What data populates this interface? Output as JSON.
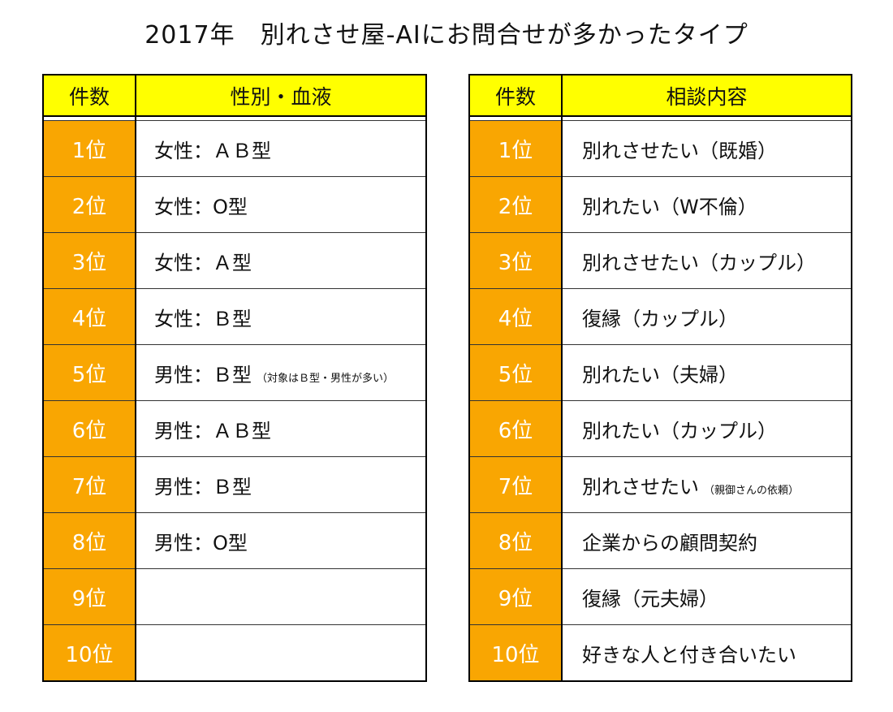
{
  "title": "2017年　別れさせ屋-AIにお問合せが多かったタイプ",
  "left_table": {
    "headers": {
      "rank": "件数",
      "content": "性別・血液"
    },
    "rows": [
      {
        "rank": "1位",
        "main": "女性：ＡＢ型",
        "note": ""
      },
      {
        "rank": "2位",
        "main": "女性：O型",
        "note": ""
      },
      {
        "rank": "3位",
        "main": "女性：Ａ型",
        "note": ""
      },
      {
        "rank": "4位",
        "main": "女性：Ｂ型",
        "note": ""
      },
      {
        "rank": "5位",
        "main": "男性：Ｂ型",
        "note": "（対象はＢ型・男性が多い）"
      },
      {
        "rank": "6位",
        "main": "男性：ＡＢ型",
        "note": ""
      },
      {
        "rank": "7位",
        "main": "男性：Ｂ型",
        "note": ""
      },
      {
        "rank": "8位",
        "main": "男性：O型",
        "note": ""
      },
      {
        "rank": "9位",
        "main": "",
        "note": ""
      },
      {
        "rank": "10位",
        "main": "",
        "note": ""
      }
    ]
  },
  "right_table": {
    "headers": {
      "rank": "件数",
      "content": "相談内容"
    },
    "rows": [
      {
        "rank": "1位",
        "main": "別れさせたい（既婚）",
        "note": ""
      },
      {
        "rank": "2位",
        "main": "別れたい（W不倫）",
        "note": ""
      },
      {
        "rank": "3位",
        "main": "別れさせたい（カップル）",
        "note": ""
      },
      {
        "rank": "4位",
        "main": "復縁（カップル）",
        "note": ""
      },
      {
        "rank": "5位",
        "main": "別れたい（夫婦）",
        "note": ""
      },
      {
        "rank": "6位",
        "main": "別れたい（カップル）",
        "note": ""
      },
      {
        "rank": "7位",
        "main": "別れさせたい",
        "note": "（親御さんの依頼）"
      },
      {
        "rank": "8位",
        "main": "企業からの顧問契約",
        "note": ""
      },
      {
        "rank": "9位",
        "main": "復縁（元夫婦）",
        "note": ""
      },
      {
        "rank": "10位",
        "main": "好きな人と付き合いたい",
        "note": ""
      }
    ]
  },
  "colors": {
    "header_bg": "#ffff00",
    "rank_bg": "#f9a602",
    "rank_text": "#ffffff",
    "border": "#000000"
  }
}
